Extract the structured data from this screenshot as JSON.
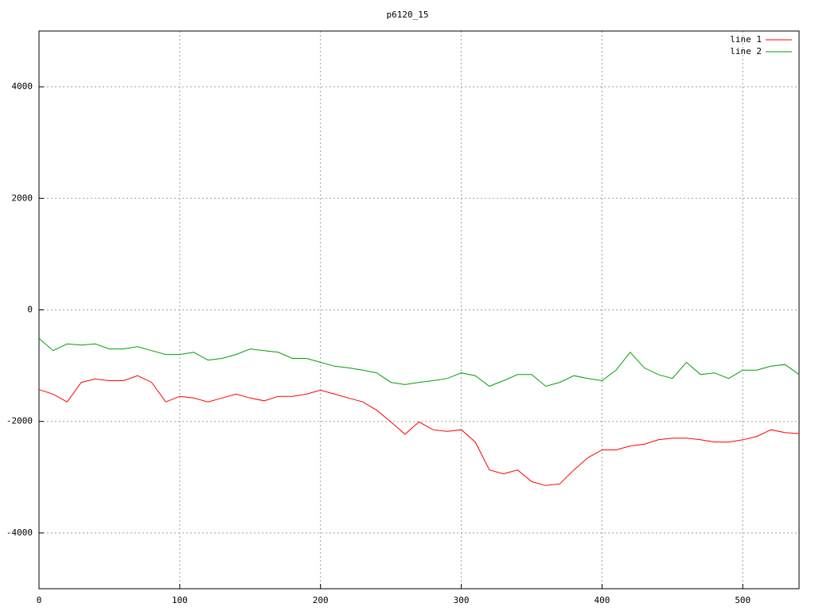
{
  "chart_data": {
    "type": "line",
    "title": "p6120_15",
    "x": [
      0,
      10,
      20,
      30,
      40,
      50,
      60,
      70,
      80,
      90,
      100,
      110,
      120,
      130,
      140,
      150,
      160,
      170,
      180,
      190,
      200,
      210,
      220,
      230,
      240,
      250,
      260,
      270,
      280,
      290,
      300,
      310,
      320,
      330,
      340,
      350,
      360,
      370,
      380,
      390,
      400,
      410,
      420,
      430,
      440,
      450,
      460,
      470,
      480,
      490,
      500,
      510,
      520,
      530,
      540
    ],
    "series": [
      {
        "name": "line 1",
        "color": "#ff0000",
        "values": [
          -1430,
          -1510,
          -1650,
          -1300,
          -1240,
          -1270,
          -1270,
          -1180,
          -1300,
          -1650,
          -1550,
          -1580,
          -1650,
          -1580,
          -1510,
          -1580,
          -1630,
          -1550,
          -1550,
          -1510,
          -1440,
          -1510,
          -1580,
          -1650,
          -1800,
          -2010,
          -2230,
          -2010,
          -2150,
          -2180,
          -2150,
          -2370,
          -2870,
          -2940,
          -2870,
          -3080,
          -3150,
          -3120,
          -2870,
          -2650,
          -2510,
          -2510,
          -2440,
          -2410,
          -2330,
          -2300,
          -2300,
          -2330,
          -2370,
          -2370,
          -2330,
          -2270,
          -2150,
          -2200,
          -2220
        ]
      },
      {
        "name": "line 2",
        "color": "#00a000",
        "values": [
          -510,
          -730,
          -610,
          -630,
          -610,
          -700,
          -700,
          -660,
          -730,
          -800,
          -800,
          -760,
          -900,
          -870,
          -800,
          -700,
          -730,
          -760,
          -870,
          -870,
          -940,
          -1010,
          -1040,
          -1080,
          -1130,
          -1300,
          -1340,
          -1300,
          -1270,
          -1230,
          -1130,
          -1180,
          -1370,
          -1270,
          -1160,
          -1160,
          -1370,
          -1300,
          -1180,
          -1230,
          -1270,
          -1080,
          -760,
          -1040,
          -1160,
          -1230,
          -940,
          -1160,
          -1130,
          -1230,
          -1080,
          -1080,
          -1010,
          -980,
          -1160
        ]
      }
    ],
    "xlim": [
      0,
      540
    ],
    "ylim": [
      -5000,
      5000
    ],
    "xticks": [
      0,
      100,
      200,
      300,
      400,
      500
    ],
    "yticks": [
      -4000,
      -2000,
      0,
      2000,
      4000
    ],
    "grid": true,
    "legend": "top-right"
  }
}
